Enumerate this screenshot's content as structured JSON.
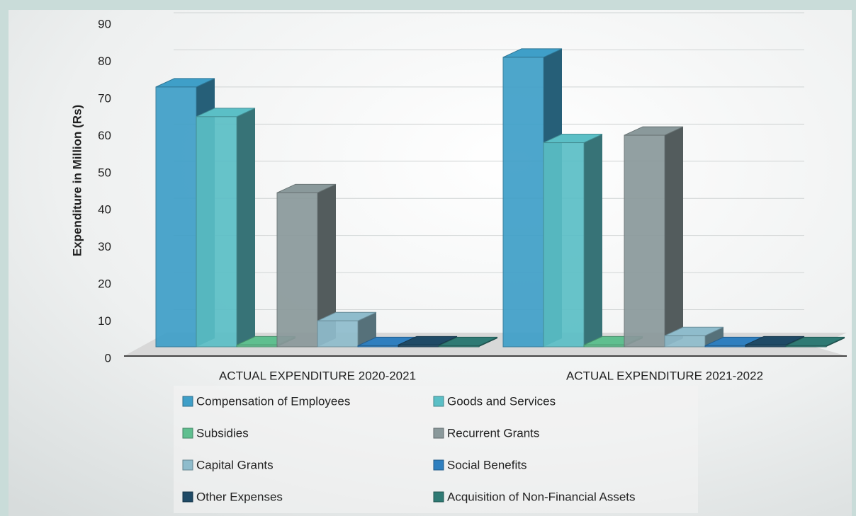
{
  "chart_data": {
    "type": "bar",
    "y_label": "Expenditure in Million (Rs)",
    "categories": [
      "ACTUAL EXPENDITURE 2020-2021",
      "ACTUAL EXPENDITURE 2021-2022"
    ],
    "series": [
      {
        "name": "Compensation of Employees",
        "color": "#3f9fc8",
        "values": [
          70,
          78
        ]
      },
      {
        "name": "Goods and Services",
        "color": "#5bbfc6",
        "values": [
          62,
          55
        ]
      },
      {
        "name": "Subsidies",
        "color": "#5fbf8f",
        "values": [
          0.5,
          0.5
        ]
      },
      {
        "name": "Recurrent Grants",
        "color": "#8a999b",
        "values": [
          41.5,
          57
        ]
      },
      {
        "name": "Capital Grants",
        "color": "#8fbccc",
        "values": [
          7,
          3
        ]
      },
      {
        "name": "Social Benefits",
        "color": "#2f7fbf",
        "values": [
          0.3,
          0.3
        ]
      },
      {
        "name": "Other Expenses",
        "color": "#1f4a66",
        "values": [
          0.5,
          0.5
        ]
      },
      {
        "name": "Acquisition of Non-Financial Assets",
        "color": "#2f7a74",
        "values": [
          0.3,
          0.3
        ]
      }
    ],
    "ylim": [
      0,
      90
    ],
    "yticks": [
      0,
      10,
      20,
      30,
      40,
      50,
      60,
      70,
      80,
      90
    ],
    "grid": true
  }
}
